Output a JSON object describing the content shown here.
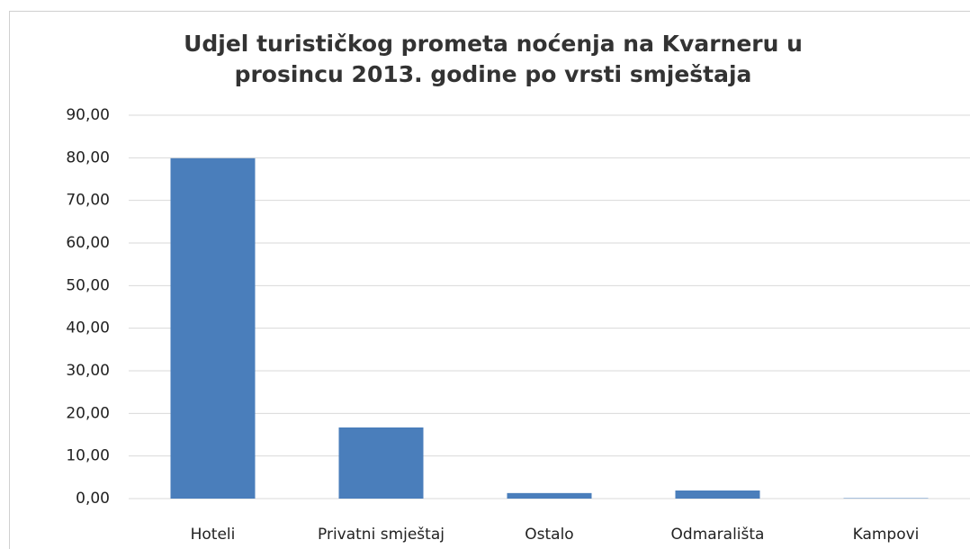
{
  "chart_data": {
    "type": "bar",
    "title": [
      "Udjel turističkog prometa noćenja na Kvarneru u",
      "prosincu  2013. godine po vrsti smještaja"
    ],
    "categories": [
      "Hoteli",
      "Privatni smještaj",
      "Ostalo",
      "Odmarališta",
      "Kampovi"
    ],
    "values": [
      79.9,
      16.7,
      1.3,
      1.9,
      0.1
    ],
    "color": "#4a7ebb",
    "ylim": [
      0,
      90
    ],
    "yticks": [
      {
        "value": 0,
        "label": "0,00"
      },
      {
        "value": 10,
        "label": "10,00"
      },
      {
        "value": 20,
        "label": "20,00"
      },
      {
        "value": 30,
        "label": "30,00"
      },
      {
        "value": 40,
        "label": "40,00"
      },
      {
        "value": 50,
        "label": "50,00"
      },
      {
        "value": 60,
        "label": "60,00"
      },
      {
        "value": 70,
        "label": "70,00"
      },
      {
        "value": 80,
        "label": "80,00"
      },
      {
        "value": 90,
        "label": "90,00"
      }
    ],
    "grid": true
  }
}
